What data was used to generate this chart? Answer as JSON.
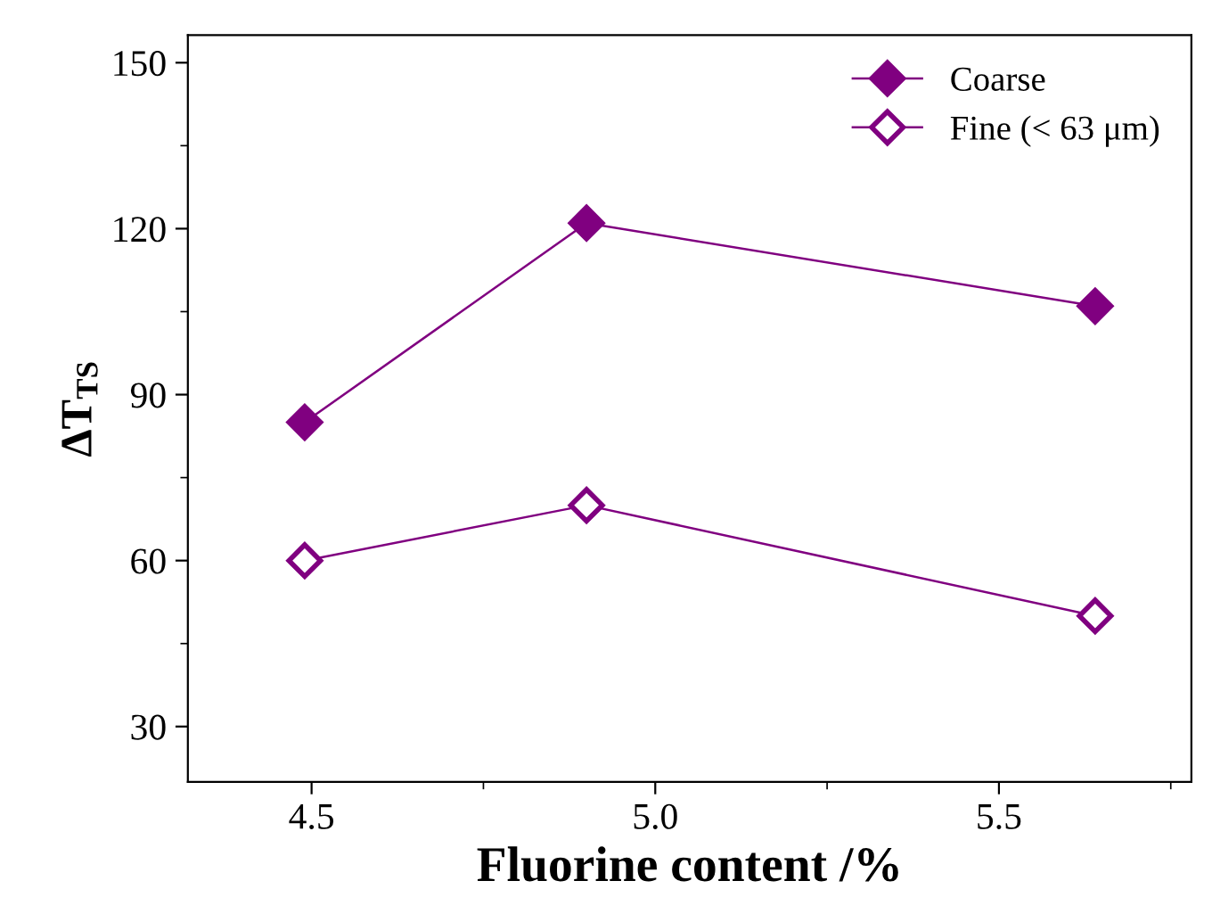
{
  "chart_data": {
    "type": "line",
    "xlabel": "Fluorine content /%",
    "ylabel": "ΔT$_{TS}$",
    "x": [
      4.49,
      4.9,
      5.64
    ],
    "series": [
      {
        "name": "Coarse",
        "color": "#800080",
        "values": [
          85,
          121,
          106
        ],
        "marker": "diamond"
      },
      {
        "name": "Fine (< 63 μm)",
        "color": "#800080",
        "values": [
          60,
          70,
          50
        ],
        "marker": "diamond"
      }
    ],
    "xlim": [
      4.32,
      5.78
    ],
    "xticks": [
      {
        "value": 4.5,
        "label": "4.5"
      },
      {
        "value": 5.0,
        "label": "5.0"
      },
      {
        "value": 5.5,
        "label": "5.5"
      }
    ],
    "ylim": [
      20,
      155
    ],
    "yticks": [
      30,
      60,
      90,
      120,
      150
    ],
    "grid": false,
    "legend": "top right",
    "line_style": "solid"
  }
}
